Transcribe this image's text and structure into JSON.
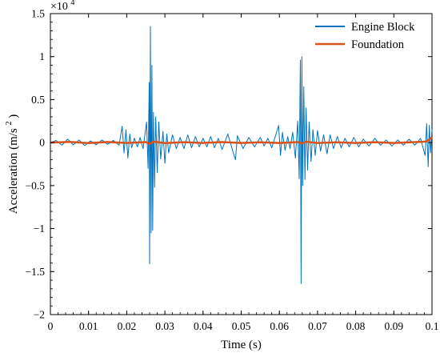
{
  "chart_data": {
    "type": "line",
    "title": "",
    "xlabel": "Time (s)",
    "ylabel": {
      "prefix": "Acceleration (m/s",
      "exp": "2",
      "suffix": ")"
    },
    "xlim": [
      0,
      0.1
    ],
    "ylim": [
      -20000,
      15000
    ],
    "y_scale_note": {
      "base": "×10",
      "exp": "4"
    },
    "x_ticks": [
      {
        "value": 0,
        "label": "0"
      },
      {
        "value": 0.01,
        "label": "0.01"
      },
      {
        "value": 0.02,
        "label": "0.02"
      },
      {
        "value": 0.03,
        "label": "0.03"
      },
      {
        "value": 0.04,
        "label": "0.04"
      },
      {
        "value": 0.05,
        "label": "0.05"
      },
      {
        "value": 0.06,
        "label": "0.06"
      },
      {
        "value": 0.07,
        "label": "0.07"
      },
      {
        "value": 0.08,
        "label": "0.08"
      },
      {
        "value": 0.09,
        "label": "0.09"
      },
      {
        "value": 0.1,
        "label": "0.1"
      }
    ],
    "y_ticks": [
      {
        "value": 15000,
        "label": "1.5"
      },
      {
        "value": 10000,
        "label": "1"
      },
      {
        "value": 5000,
        "label": "0.5"
      },
      {
        "value": 0,
        "label": "0"
      },
      {
        "value": -5000,
        "label": "−0.5"
      },
      {
        "value": -10000,
        "label": "−1"
      },
      {
        "value": -15000,
        "label": "−1.5"
      },
      {
        "value": -20000,
        "label": "−2"
      }
    ],
    "grid": false,
    "legend_position": "top-right",
    "series": [
      {
        "name": "Engine Block",
        "color": "#0072BD",
        "points": [
          [
            0.0,
            0
          ],
          [
            0.0015,
            250
          ],
          [
            0.003,
            -300
          ],
          [
            0.0045,
            400
          ],
          [
            0.006,
            -250
          ],
          [
            0.0075,
            300
          ],
          [
            0.009,
            -350
          ],
          [
            0.0105,
            200
          ],
          [
            0.012,
            -250
          ],
          [
            0.0135,
            300
          ],
          [
            0.015,
            -200
          ],
          [
            0.0165,
            250
          ],
          [
            0.018,
            -300
          ],
          [
            0.0188,
            1900
          ],
          [
            0.0193,
            -1200
          ],
          [
            0.0198,
            1500
          ],
          [
            0.0203,
            -1800
          ],
          [
            0.0208,
            1000
          ],
          [
            0.0213,
            -600
          ],
          [
            0.022,
            500
          ],
          [
            0.0228,
            -500
          ],
          [
            0.0235,
            600
          ],
          [
            0.0243,
            -700
          ],
          [
            0.0252,
            2400
          ],
          [
            0.0256,
            -3000
          ],
          [
            0.0259,
            7000
          ],
          [
            0.026,
            -14100
          ],
          [
            0.0262,
            13500
          ],
          [
            0.0264,
            -10500
          ],
          [
            0.0266,
            9000
          ],
          [
            0.0268,
            -10200
          ],
          [
            0.027,
            3500
          ],
          [
            0.0273,
            -5200
          ],
          [
            0.0276,
            3000
          ],
          [
            0.028,
            -3500
          ],
          [
            0.0284,
            2400
          ],
          [
            0.0289,
            -1900
          ],
          [
            0.0295,
            1300
          ],
          [
            0.03,
            -2400
          ],
          [
            0.0305,
            1000
          ],
          [
            0.031,
            -1200
          ],
          [
            0.032,
            900
          ],
          [
            0.033,
            -700
          ],
          [
            0.034,
            600
          ],
          [
            0.035,
            -700
          ],
          [
            0.036,
            900
          ],
          [
            0.037,
            -600
          ],
          [
            0.038,
            700
          ],
          [
            0.039,
            -500
          ],
          [
            0.04,
            500
          ],
          [
            0.041,
            -500
          ],
          [
            0.042,
            700
          ],
          [
            0.043,
            -600
          ],
          [
            0.044,
            500
          ],
          [
            0.045,
            -800
          ],
          [
            0.0465,
            1000
          ],
          [
            0.048,
            -1300
          ],
          [
            0.0485,
            -2000
          ],
          [
            0.049,
            800
          ],
          [
            0.0505,
            -700
          ],
          [
            0.052,
            600
          ],
          [
            0.0535,
            -500
          ],
          [
            0.055,
            600
          ],
          [
            0.056,
            -400
          ],
          [
            0.057,
            500
          ],
          [
            0.058,
            -600
          ],
          [
            0.059,
            800
          ],
          [
            0.0598,
            2000
          ],
          [
            0.0603,
            -1500
          ],
          [
            0.0608,
            1200
          ],
          [
            0.0615,
            -900
          ],
          [
            0.0622,
            700
          ],
          [
            0.0628,
            -700
          ],
          [
            0.0635,
            1200
          ],
          [
            0.0642,
            -1800
          ],
          [
            0.0648,
            2500
          ],
          [
            0.0652,
            -4200
          ],
          [
            0.0655,
            9600
          ],
          [
            0.0657,
            -16400
          ],
          [
            0.0659,
            10000
          ],
          [
            0.0661,
            -5000
          ],
          [
            0.0664,
            6500
          ],
          [
            0.0667,
            -4300
          ],
          [
            0.067,
            4000
          ],
          [
            0.0674,
            -3200
          ],
          [
            0.0678,
            2400
          ],
          [
            0.0683,
            -2200
          ],
          [
            0.0688,
            1500
          ],
          [
            0.0694,
            -1500
          ],
          [
            0.07,
            1400
          ],
          [
            0.0708,
            -1000
          ],
          [
            0.0716,
            900
          ],
          [
            0.0725,
            -1300
          ],
          [
            0.0733,
            900
          ],
          [
            0.0742,
            -700
          ],
          [
            0.0752,
            700
          ],
          [
            0.0762,
            -600
          ],
          [
            0.0772,
            500
          ],
          [
            0.0783,
            -500
          ],
          [
            0.0795,
            600
          ],
          [
            0.0808,
            -500
          ],
          [
            0.082,
            400
          ],
          [
            0.0835,
            -400
          ],
          [
            0.085,
            500
          ],
          [
            0.0865,
            -300
          ],
          [
            0.088,
            300
          ],
          [
            0.0895,
            -400
          ],
          [
            0.091,
            300
          ],
          [
            0.0925,
            -300
          ],
          [
            0.094,
            400
          ],
          [
            0.0955,
            -300
          ],
          [
            0.097,
            500
          ],
          [
            0.0982,
            -1500
          ],
          [
            0.0986,
            2200
          ],
          [
            0.099,
            -2800
          ],
          [
            0.0993,
            2000
          ],
          [
            0.0996,
            -1200
          ],
          [
            0.1,
            1500
          ]
        ]
      },
      {
        "name": "Foundation",
        "color": "#D95319",
        "points": [
          [
            0.0,
            0
          ],
          [
            0.005,
            80
          ],
          [
            0.01,
            -60
          ],
          [
            0.015,
            70
          ],
          [
            0.02,
            -50
          ],
          [
            0.025,
            60
          ],
          [
            0.026,
            -150
          ],
          [
            0.027,
            120
          ],
          [
            0.03,
            -60
          ],
          [
            0.035,
            50
          ],
          [
            0.04,
            -40
          ],
          [
            0.045,
            60
          ],
          [
            0.05,
            -50
          ],
          [
            0.055,
            40
          ],
          [
            0.06,
            -40
          ],
          [
            0.065,
            60
          ],
          [
            0.0658,
            -120
          ],
          [
            0.067,
            100
          ],
          [
            0.07,
            -50
          ],
          [
            0.075,
            40
          ],
          [
            0.08,
            -40
          ],
          [
            0.085,
            50
          ],
          [
            0.09,
            -40
          ],
          [
            0.095,
            50
          ],
          [
            0.0985,
            120
          ],
          [
            0.1,
            600
          ]
        ]
      }
    ]
  }
}
